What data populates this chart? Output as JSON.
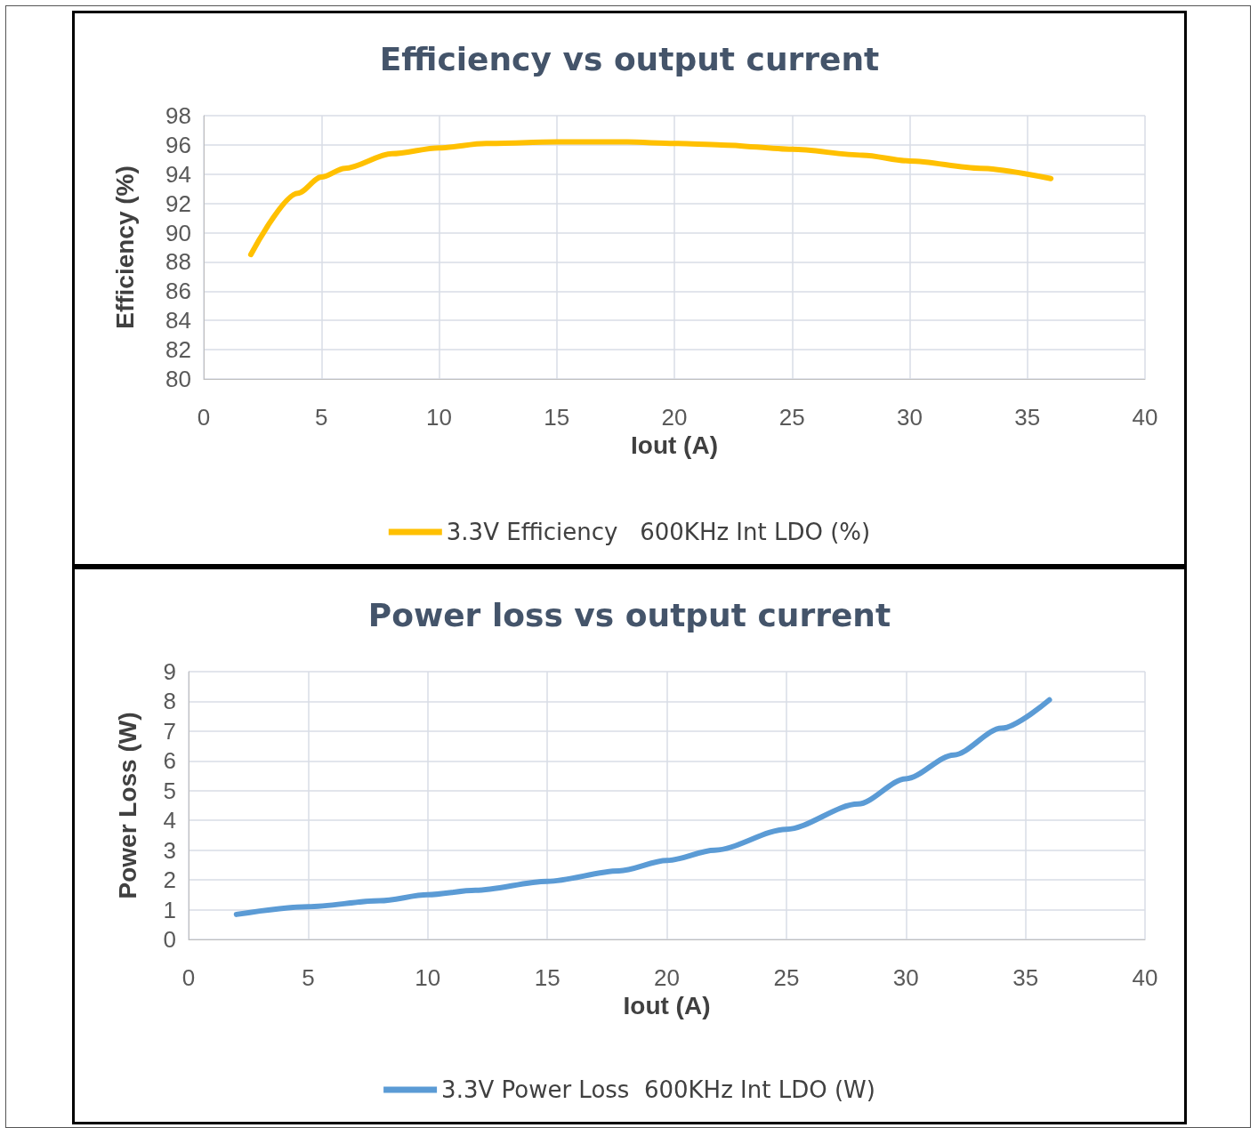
{
  "chart_data": [
    {
      "type": "line",
      "title": "Efficiency vs output current",
      "xlabel": "Iout (A)",
      "ylabel": "Efficiency (%)",
      "x": [
        2,
        4,
        5,
        6,
        8,
        10,
        12,
        15,
        18,
        20,
        22,
        25,
        28,
        30,
        33,
        36
      ],
      "series": [
        {
          "name": "3.3V Efficiency   600KHz Int LDO (%)",
          "color": "#ffc000",
          "values": [
            88.5,
            92.7,
            93.8,
            94.4,
            95.4,
            95.8,
            96.1,
            96.2,
            96.2,
            96.1,
            96.0,
            95.7,
            95.3,
            94.9,
            94.4,
            93.7
          ]
        }
      ],
      "xlim": [
        0,
        40
      ],
      "xticks": [
        0,
        5,
        10,
        15,
        20,
        25,
        30,
        35,
        40
      ],
      "ylim": [
        80,
        98
      ],
      "yticks": [
        80,
        82,
        84,
        86,
        88,
        90,
        92,
        94,
        96,
        98
      ],
      "grid": true,
      "legend": "bottom",
      "marker": "none",
      "line_style": "solid"
    },
    {
      "type": "line",
      "title": "Power loss vs output current",
      "xlabel": "Iout (A)",
      "ylabel": "Power Loss (W)",
      "x": [
        2,
        5,
        8,
        10,
        12,
        15,
        18,
        20,
        22,
        25,
        28,
        30,
        32,
        34,
        36
      ],
      "series": [
        {
          "name": "3.3V Power Loss  600KHz Int LDO (W)",
          "color": "#5b9bd5",
          "values": [
            0.84,
            1.1,
            1.3,
            1.5,
            1.65,
            1.95,
            2.3,
            2.65,
            3.0,
            3.7,
            4.55,
            5.4,
            6.2,
            7.1,
            8.05
          ]
        }
      ],
      "xlim": [
        0,
        40
      ],
      "xticks": [
        0,
        5,
        10,
        15,
        20,
        25,
        30,
        35,
        40
      ],
      "ylim": [
        0,
        9
      ],
      "yticks": [
        0,
        1,
        2,
        3,
        4,
        5,
        6,
        7,
        8,
        9
      ],
      "grid": true,
      "legend": "bottom",
      "marker": "none",
      "line_style": "solid"
    }
  ]
}
